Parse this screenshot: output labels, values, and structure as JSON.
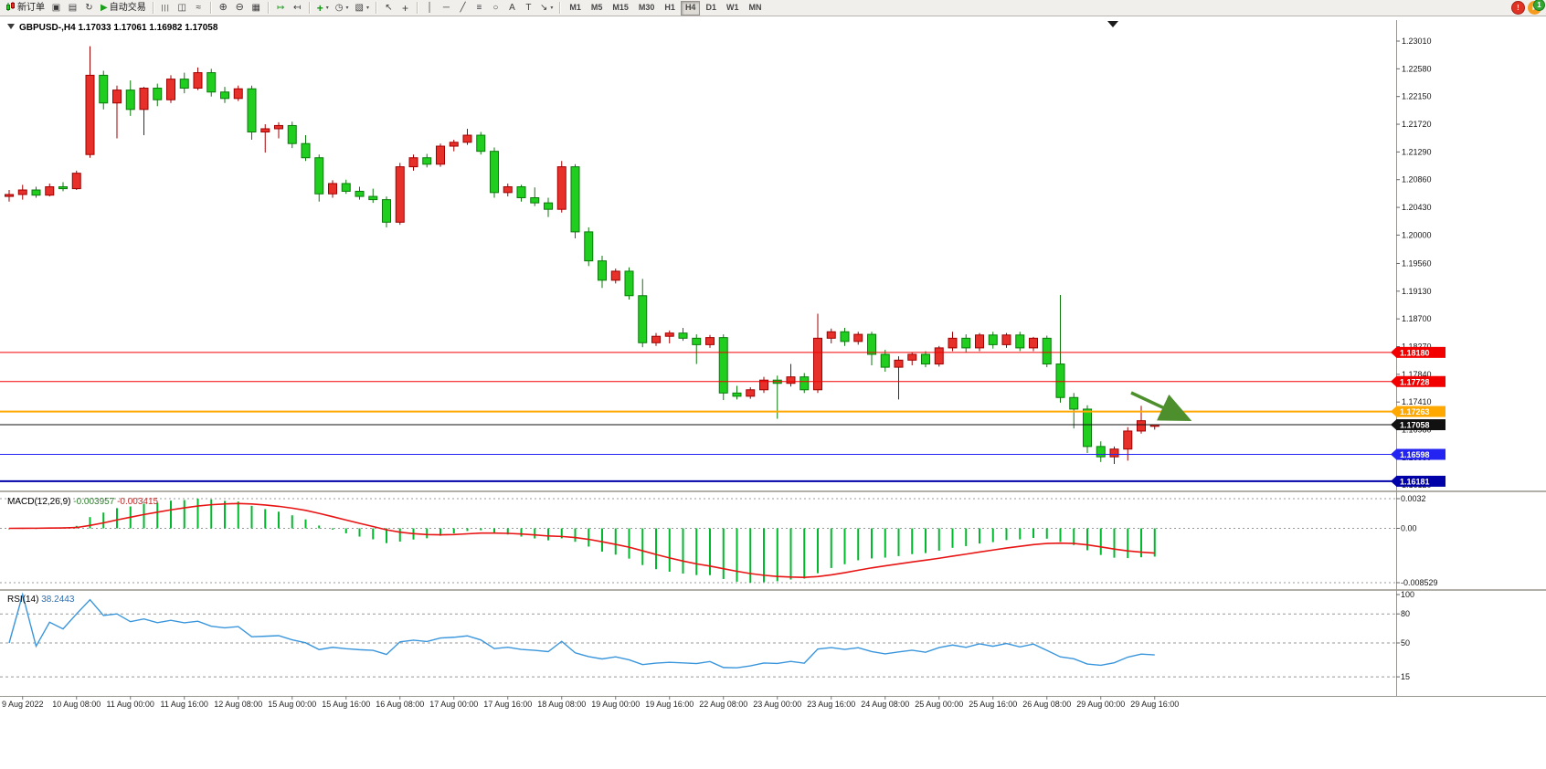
{
  "toolbar": {
    "new_order_label": "新订单",
    "autotrading_label": "自动交易",
    "timeframes": [
      "M1",
      "M5",
      "M15",
      "M30",
      "H1",
      "H4",
      "D1",
      "W1",
      "MN"
    ],
    "active_timeframe": "H4",
    "notification_badge": "1",
    "icons": {
      "new_chart": "▣",
      "profiles": "▤",
      "refresh": "↻",
      "autoplay": "▶",
      "bars": "|||",
      "candles": "◫",
      "line": "≈",
      "zoom_in": "⊕",
      "zoom_out": "⊖",
      "tile": "▦",
      "autoscroll": "↦",
      "chart_shift": "↤",
      "indicators": "+",
      "periods": "◷",
      "templates": "▧",
      "cursor": "↖",
      "crosshair": "+",
      "vline": "│",
      "hline": "─",
      "trendline": "╱",
      "fibo": "≡",
      "shapes": "○",
      "text": "A",
      "label": "T",
      "arrows": "↘",
      "caret": "▾"
    }
  },
  "chart": {
    "symbol_label": "GBPUSD-,H4",
    "ohlc_label": "1.17033 1.17061 1.16982 1.17058",
    "price_axis_labels": [
      "1.23010",
      "1.22580",
      "1.22150",
      "1.21720",
      "1.21290",
      "1.20860",
      "1.20430",
      "1.20000",
      "1.19560",
      "1.19130",
      "1.18700",
      "1.18270",
      "1.17840",
      "1.17410",
      "1.16980",
      "1.16550",
      "1.16120"
    ],
    "levels": [
      {
        "price": "1.18180",
        "color": "#F20000",
        "width": 1
      },
      {
        "price": "1.17728",
        "color": "#F20000",
        "width": 1
      },
      {
        "price": "1.17263",
        "color": "#FFA800",
        "width": 2
      },
      {
        "price": "1.17058",
        "color": "#111111",
        "width": 1,
        "is_current_price": true
      },
      {
        "price": "1.16598",
        "color": "#2424F2",
        "width": 1
      },
      {
        "price": "1.16181",
        "color": "#0000A8",
        "width": 2
      }
    ],
    "time_axis_labels": [
      "9 Aug 2022",
      "10 Aug 08:00",
      "11 Aug 00:00",
      "11 Aug 16:00",
      "12 Aug 08:00",
      "15 Aug 00:00",
      "15 Aug 16:00",
      "16 Aug 08:00",
      "17 Aug 00:00",
      "17 Aug 16:00",
      "18 Aug 08:00",
      "19 Aug 00:00",
      "19 Aug 16:00",
      "22 Aug 08:00",
      "23 Aug 00:00",
      "23 Aug 16:00",
      "24 Aug 08:00",
      "25 Aug 00:00",
      "25 Aug 16:00",
      "26 Aug 08:00",
      "29 Aug 00:00",
      "29 Aug 16:00"
    ],
    "colors": {
      "up": "#E8302A",
      "up_border": "#A00000",
      "down": "#1FCE1F",
      "down_border": "#0B7A0B",
      "macd_hist": "#00B92C",
      "macd_signal": "#E81414",
      "rsi_line": "#3A96DC",
      "arrow": "#4E8F2D"
    }
  },
  "chart_data": {
    "type": "candlestick",
    "symbol": "GBPUSD-",
    "period": "H4",
    "price_axis_range": [
      1.1612,
      1.2301
    ],
    "current_ohlc": {
      "open": "1.17033",
      "high": "1.17061",
      "low": "1.16982",
      "close": "1.17058"
    },
    "ohlc": [
      [
        1.206,
        1.207,
        1.2052,
        1.2063
      ],
      [
        1.2063,
        1.2078,
        1.2055,
        1.207
      ],
      [
        1.207,
        1.2075,
        1.2058,
        1.2062
      ],
      [
        1.2062,
        1.208,
        1.206,
        1.2075
      ],
      [
        1.2075,
        1.2082,
        1.2068,
        1.2072
      ],
      [
        1.2072,
        1.21,
        1.207,
        1.2096
      ],
      [
        1.2125,
        1.2293,
        1.212,
        1.2248
      ],
      [
        1.2248,
        1.2255,
        1.2195,
        1.2205
      ],
      [
        1.2205,
        1.2232,
        1.215,
        1.2225
      ],
      [
        1.2225,
        1.224,
        1.2185,
        1.2195
      ],
      [
        1.2195,
        1.223,
        1.2155,
        1.2228
      ],
      [
        1.2228,
        1.2235,
        1.22,
        1.221
      ],
      [
        1.221,
        1.2248,
        1.2205,
        1.2242
      ],
      [
        1.2242,
        1.2252,
        1.222,
        1.2228
      ],
      [
        1.2228,
        1.226,
        1.2225,
        1.2252
      ],
      [
        1.2252,
        1.2258,
        1.2215,
        1.2222
      ],
      [
        1.2222,
        1.223,
        1.2205,
        1.2212
      ],
      [
        1.2212,
        1.2232,
        1.2208,
        1.2227
      ],
      [
        1.2227,
        1.2232,
        1.2148,
        1.216
      ],
      [
        1.216,
        1.2172,
        1.2128,
        1.2165
      ],
      [
        1.2165,
        1.2175,
        1.215,
        1.217
      ],
      [
        1.217,
        1.2176,
        1.2135,
        1.2142
      ],
      [
        1.2142,
        1.2155,
        1.2115,
        1.212
      ],
      [
        1.212,
        1.2125,
        1.2052,
        1.2064
      ],
      [
        1.2064,
        1.2085,
        1.2058,
        1.208
      ],
      [
        1.208,
        1.2086,
        1.2064,
        1.2068
      ],
      [
        1.2068,
        1.2075,
        1.2055,
        1.206
      ],
      [
        1.206,
        1.2072,
        1.205,
        1.2055
      ],
      [
        1.2055,
        1.206,
        1.2012,
        1.202
      ],
      [
        1.202,
        1.2112,
        1.2016,
        1.2106
      ],
      [
        1.2106,
        1.2125,
        1.21,
        1.212
      ],
      [
        1.212,
        1.2126,
        1.2105,
        1.211
      ],
      [
        1.211,
        1.2142,
        1.2106,
        1.2138
      ],
      [
        1.2138,
        1.2148,
        1.213,
        1.2144
      ],
      [
        1.2144,
        1.2165,
        1.214,
        1.2155
      ],
      [
        1.2155,
        1.216,
        1.2125,
        1.213
      ],
      [
        1.213,
        1.2136,
        1.2058,
        1.2066
      ],
      [
        1.2066,
        1.208,
        1.206,
        1.2075
      ],
      [
        1.2075,
        1.2078,
        1.2052,
        1.2058
      ],
      [
        1.2058,
        1.2074,
        1.2045,
        1.205
      ],
      [
        1.205,
        1.2058,
        1.2028,
        1.204
      ],
      [
        1.204,
        1.2115,
        1.2035,
        1.2106
      ],
      [
        1.2106,
        1.211,
        1.1995,
        1.2005
      ],
      [
        1.2005,
        1.2012,
        1.1952,
        1.196
      ],
      [
        1.196,
        1.1968,
        1.1918,
        1.193
      ],
      [
        1.193,
        1.1948,
        1.1925,
        1.1944
      ],
      [
        1.1944,
        1.195,
        1.19,
        1.1906
      ],
      [
        1.1906,
        1.1932,
        1.1826,
        1.1833
      ],
      [
        1.1833,
        1.1848,
        1.1828,
        1.1843
      ],
      [
        1.1843,
        1.1852,
        1.1832,
        1.1848
      ],
      [
        1.1848,
        1.1856,
        1.1836,
        1.184
      ],
      [
        1.184,
        1.1846,
        1.18,
        1.183
      ],
      [
        1.183,
        1.1845,
        1.1825,
        1.1841
      ],
      [
        1.1841,
        1.1846,
        1.1744,
        1.1755
      ],
      [
        1.1755,
        1.1766,
        1.1745,
        1.175
      ],
      [
        1.175,
        1.1764,
        1.1746,
        1.176
      ],
      [
        1.176,
        1.178,
        1.1755,
        1.1775
      ],
      [
        1.1775,
        1.1782,
        1.1715,
        1.177
      ],
      [
        1.177,
        1.18,
        1.1765,
        1.178
      ],
      [
        1.178,
        1.1786,
        1.1755,
        1.176
      ],
      [
        1.176,
        1.1878,
        1.1755,
        1.184
      ],
      [
        1.184,
        1.1855,
        1.1832,
        1.185
      ],
      [
        1.185,
        1.1856,
        1.1828,
        1.1835
      ],
      [
        1.1835,
        1.185,
        1.183,
        1.1846
      ],
      [
        1.1846,
        1.185,
        1.1798,
        1.1815
      ],
      [
        1.1815,
        1.1822,
        1.1788,
        1.1795
      ],
      [
        1.1795,
        1.1812,
        1.1745,
        1.1806
      ],
      [
        1.1806,
        1.1818,
        1.1798,
        1.1815
      ],
      [
        1.1815,
        1.182,
        1.1795,
        1.18
      ],
      [
        1.18,
        1.1828,
        1.1796,
        1.1825
      ],
      [
        1.1825,
        1.185,
        1.182,
        1.184
      ],
      [
        1.184,
        1.1846,
        1.1818,
        1.1825
      ],
      [
        1.1825,
        1.1848,
        1.182,
        1.1845
      ],
      [
        1.1845,
        1.185,
        1.1824,
        1.183
      ],
      [
        1.183,
        1.1848,
        1.1825,
        1.1845
      ],
      [
        1.1845,
        1.185,
        1.182,
        1.1825
      ],
      [
        1.1825,
        1.1842,
        1.182,
        1.184
      ],
      [
        1.184,
        1.1844,
        1.1795,
        1.18
      ],
      [
        1.18,
        1.1907,
        1.174,
        1.1748
      ],
      [
        1.1748,
        1.1755,
        1.17,
        1.173
      ],
      [
        1.173,
        1.1736,
        1.1662,
        1.1672
      ],
      [
        1.1672,
        1.168,
        1.1648,
        1.1656
      ],
      [
        1.1656,
        1.1672,
        1.1645,
        1.1668
      ],
      [
        1.1668,
        1.1702,
        1.165,
        1.1696
      ],
      [
        1.1696,
        1.1735,
        1.1692,
        1.1712
      ],
      [
        1.17033,
        1.17061,
        1.16982,
        1.17058
      ]
    ],
    "indicators": [
      {
        "type": "MACD",
        "label": "MACD(12,26,9)",
        "value_main": "-0.003957",
        "value_signal": "-0.003415",
        "scale_labels": [
          "0.0032",
          "0.00",
          "-0.008529"
        ]
      },
      {
        "type": "RSI",
        "label": "RSI(14)",
        "value": "38.2443",
        "scale_labels": [
          "100",
          "80",
          "50",
          "15"
        ],
        "levels": [
          80,
          50,
          15
        ]
      }
    ],
    "annotations": [
      {
        "type": "arrow",
        "from": [
          1238,
          412
        ],
        "to": [
          1298,
          440
        ],
        "color": "#4E8F2D"
      }
    ]
  }
}
